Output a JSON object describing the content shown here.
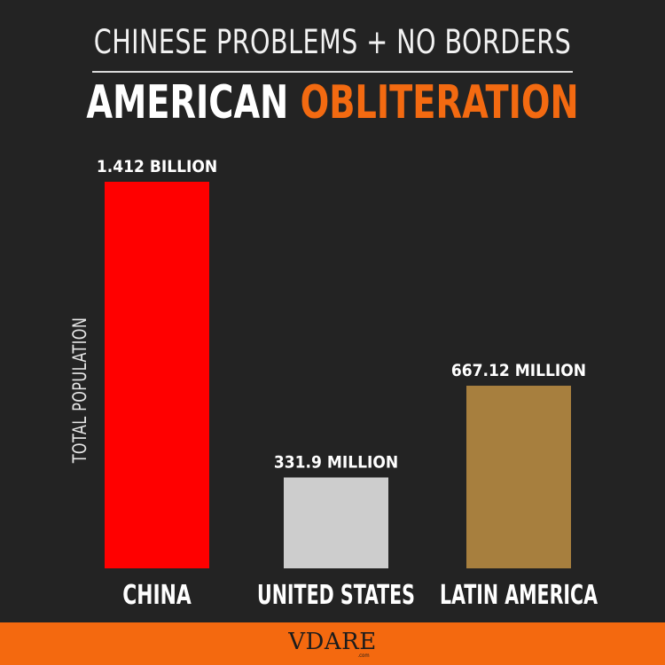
{
  "header": {
    "top_line": "CHINESE PROBLEMS + NO BORDERS",
    "main_white": "AMERICAN",
    "main_orange": "OBLITERATION"
  },
  "chart_data": {
    "type": "bar",
    "title": "CHINESE PROBLEMS + NO BORDERS / AMERICAN OBLITERATION",
    "ylabel": "TOTAL POPULATION",
    "xlabel": "",
    "categories": [
      "CHINA",
      "UNITED STATES",
      "LATIN AMERICA"
    ],
    "values": [
      1412,
      331.9,
      667.12
    ],
    "value_unit": "million",
    "data_labels": [
      "1.412 BILLION",
      "331.9 MILLION",
      "667.12 MILLION"
    ],
    "colors": [
      "#ff0000",
      "#cdcdcd",
      "#a77f3e"
    ],
    "ylim": [
      0,
      1412
    ],
    "grid": false,
    "legend": "none"
  },
  "footer": {
    "logo": "VDARE",
    "logo_sub": ".com",
    "colors": {
      "background": "#f4690f",
      "page_background": "#232323",
      "accent": "#f36a11"
    }
  }
}
